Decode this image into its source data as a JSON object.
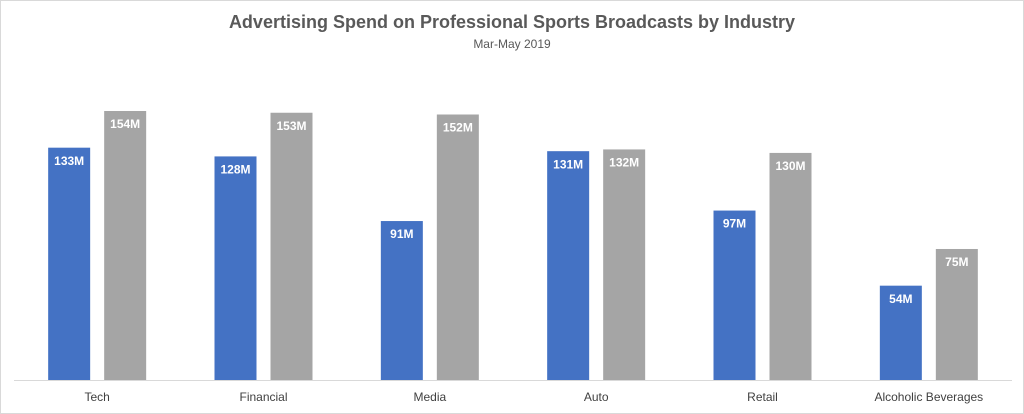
{
  "chart_data": {
    "type": "bar",
    "title": "Advertising Spend on Professional Sports Broadcasts by Industry",
    "subtitle": "Mar-May 2019",
    "categories": [
      "Tech",
      "Financial",
      "Media",
      "Auto",
      "Retail",
      "Alcoholic Beverages"
    ],
    "series": [
      {
        "color": "#4472c4",
        "values": [
          133,
          128,
          91,
          131,
          97,
          54
        ],
        "value_labels": [
          "133M",
          "128M",
          "91M",
          "131M",
          "97M",
          "54M"
        ]
      },
      {
        "color": "#a5a5a5",
        "values": [
          154,
          153,
          152,
          132,
          130,
          75
        ],
        "value_labels": [
          "154M",
          "153M",
          "152M",
          "132M",
          "130M",
          "75M"
        ]
      }
    ]
  }
}
